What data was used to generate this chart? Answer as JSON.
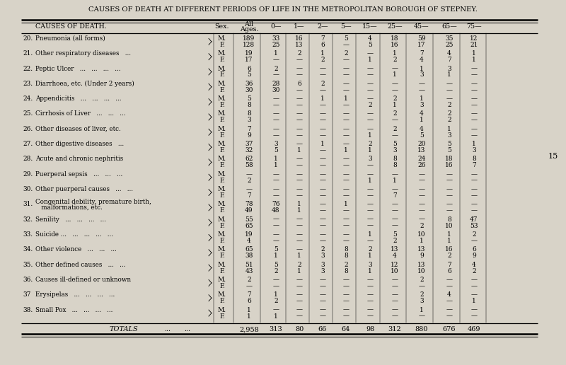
{
  "title": "CAUSES OF DEATH AT DIFFERENT PERIODS OF LIFE IN THE METROPOLITAN BOROUGH OF STEPNEY.",
  "bg_color": "#d8d3c8",
  "page_number": "15",
  "rows": [
    {
      "num": "20.",
      "label": "Pneumonia (all forms)",
      "dots": "...   ...",
      "M": [
        "189",
        "33",
        "16",
        "7",
        "5",
        "4",
        "18",
        "59",
        "35",
        "12"
      ],
      "F": [
        "128",
        "25",
        "13",
        "6",
        "—",
        "5",
        "16",
        "17",
        "25",
        "21"
      ]
    },
    {
      "num": "21.",
      "label": "Other respiratory diseases   ...",
      "dots": "...",
      "M": [
        "19",
        "1",
        "2",
        "1",
        "2",
        "—",
        "1",
        "7",
        "4",
        "1"
      ],
      "F": [
        "17",
        "—",
        "—",
        "2",
        "—",
        "1",
        "2",
        "4",
        "7",
        "1"
      ]
    },
    {
      "num": "22.",
      "label": "Peptic Ulcer   ...   ...   ...   ...",
      "dots": "",
      "M": [
        "6",
        "2",
        "—",
        "—",
        "—",
        "—",
        "—",
        "1",
        "3",
        "—"
      ],
      "F": [
        "5",
        "—",
        "—",
        "—",
        "—",
        "—",
        "1",
        "3",
        "1",
        "—"
      ]
    },
    {
      "num": "23.",
      "label": "Diarrhoea, etc. (Under 2 years)",
      "dots": "...",
      "M": [
        "36",
        "28",
        "6",
        "2",
        "—",
        "—",
        "—",
        "—",
        "—",
        "—"
      ],
      "F": [
        "30",
        "30",
        "—",
        "—",
        "—",
        "—",
        "—",
        "—",
        "—",
        "—"
      ]
    },
    {
      "num": "24.",
      "label": "Appendicitis   ...   ...   ...   ...",
      "dots": "",
      "M": [
        "5",
        "—",
        "—",
        "1",
        "1",
        "—",
        "2",
        "1",
        "—",
        "—"
      ],
      "F": [
        "8",
        "—",
        "—",
        "—",
        "—",
        "2",
        "1",
        "3",
        "2",
        "—"
      ]
    },
    {
      "num": "25.",
      "label": "Cirrhosis of Liver   ...   ...   ...",
      "dots": "",
      "M": [
        "8",
        "—",
        "—",
        "—",
        "—",
        "—",
        "2",
        "4",
        "2",
        "—"
      ],
      "F": [
        "3",
        "—",
        "—",
        "—",
        "—",
        "—",
        "—",
        "1",
        "2",
        "—"
      ]
    },
    {
      "num": "26.",
      "label": "Other diseases of liver, etc.",
      "dots": "...",
      "M": [
        "7",
        "—",
        "—",
        "—",
        "—",
        "—",
        "2",
        "4",
        "1",
        "—"
      ],
      "F": [
        "9",
        "—",
        "—",
        "—",
        "—",
        "1",
        "—",
        "5",
        "3",
        "—"
      ]
    },
    {
      "num": "27.",
      "label": "Other digestive diseases   ...",
      "dots": "...",
      "M": [
        "37",
        "3",
        "—",
        "1",
        "—",
        "2",
        "5",
        "20",
        "5",
        "1"
      ],
      "F": [
        "32",
        "5",
        "1",
        "—",
        "1",
        "1",
        "3",
        "13",
        "5",
        "3"
      ]
    },
    {
      "num": "28.",
      "label": "Acute and chronic nephritis",
      "dots": "...",
      "M": [
        "62",
        "1",
        "—",
        "—",
        "—",
        "3",
        "8",
        "24",
        "18",
        "8"
      ],
      "F": [
        "58",
        "1",
        "—",
        "—",
        "—",
        "—",
        "8",
        "26",
        "16",
        "7"
      ]
    },
    {
      "num": "29.",
      "label": "Puerperal sepsis   ...   ...   ...",
      "dots": "",
      "M": [
        "—",
        "—",
        "—",
        "—",
        "—",
        "—",
        "—",
        "—",
        "—",
        "—"
      ],
      "F": [
        "2",
        "—",
        "—",
        "—",
        "—",
        "1",
        "1",
        "—",
        "—",
        "—"
      ]
    },
    {
      "num": "30.",
      "label": "Other puerperal causes   ...   ...",
      "dots": "",
      "M": [
        "—",
        "—",
        "—",
        "—",
        "—",
        "—",
        "—",
        "—",
        "—",
        "—"
      ],
      "F": [
        "7",
        "—",
        "—",
        "—",
        "—",
        "—",
        "7",
        "—",
        "—",
        "—"
      ]
    },
    {
      "num": "31.",
      "label": "Congenital debility, premature birth,",
      "label2": "   malformations, etc.",
      "dots": "",
      "M": [
        "78",
        "76",
        "1",
        "—",
        "1",
        "—",
        "—",
        "—",
        "—",
        "—"
      ],
      "F": [
        "49",
        "48",
        "1",
        "—",
        "—",
        "—",
        "—",
        "—",
        "—",
        "—"
      ]
    },
    {
      "num": "32.",
      "label": "Senility   ...   ...   ...   ...",
      "dots": "",
      "M": [
        "55",
        "—",
        "—",
        "—",
        "—",
        "—",
        "—",
        "—",
        "8",
        "47"
      ],
      "F": [
        "65",
        "—",
        "—",
        "—",
        "—",
        "—",
        "—",
        "2",
        "10",
        "53"
      ]
    },
    {
      "num": "33.",
      "label": "Suicide ...   ...   ...   ...   ...",
      "dots": "",
      "M": [
        "19",
        "—",
        "—",
        "—",
        "—",
        "1",
        "5",
        "10",
        "1",
        "2"
      ],
      "F": [
        "4",
        "—",
        "—",
        "—",
        "—",
        "—",
        "2",
        "1",
        "1",
        "—"
      ]
    },
    {
      "num": "34.",
      "label": "Other violence   ...   ...   ...",
      "dots": "",
      "M": [
        "65",
        "5",
        "—",
        "2",
        "8",
        "2",
        "13",
        "13",
        "16",
        "6"
      ],
      "F": [
        "38",
        "1",
        "1",
        "3",
        "8",
        "1",
        "4",
        "9",
        "2",
        "9"
      ]
    },
    {
      "num": "35.",
      "label": "Other defined causes   ...   ...",
      "dots": "",
      "M": [
        "51",
        "5",
        "2",
        "3",
        "2",
        "3",
        "12",
        "13",
        "7",
        "4"
      ],
      "F": [
        "43",
        "2",
        "1",
        "3",
        "8",
        "1",
        "10",
        "10",
        "6",
        "2"
      ]
    },
    {
      "num": "36.",
      "label": "Causes ill-defined or unknown",
      "dots": "...",
      "M": [
        "2",
        "—",
        "—",
        "—",
        "—",
        "—",
        "—",
        "2",
        "—",
        "—"
      ],
      "F": [
        "—",
        "—",
        "—",
        "—",
        "—",
        "—",
        "—",
        "—",
        "—",
        "—"
      ]
    },
    {
      "num": "37",
      "label": "Erysipelas   ...   ...   ...   ...",
      "dots": "",
      "M": [
        "7",
        "1",
        "—",
        "—",
        "—",
        "—",
        "—",
        "2",
        "4",
        "—"
      ],
      "F": [
        "6",
        "2",
        "—",
        "—",
        "—",
        "—",
        "—",
        "3",
        "—",
        "1"
      ]
    },
    {
      "num": "38.",
      "label": "Small Pox   ...   ...   ...   ...",
      "dots": "",
      "M": [
        "1",
        "—",
        "—",
        "—",
        "—",
        "—",
        "—",
        "1",
        "—",
        "—"
      ],
      "F": [
        "1",
        "1",
        "—",
        "—",
        "—",
        "—",
        "—",
        "—",
        "—",
        "—"
      ]
    }
  ],
  "totals": [
    "2,958",
    "313",
    "80",
    "66",
    "64",
    "98",
    "312",
    "880",
    "676",
    "469"
  ],
  "col_headers": [
    "0—",
    "1—",
    "2—",
    "5—",
    "15—",
    "25—",
    "45—",
    "65—",
    "75—"
  ]
}
